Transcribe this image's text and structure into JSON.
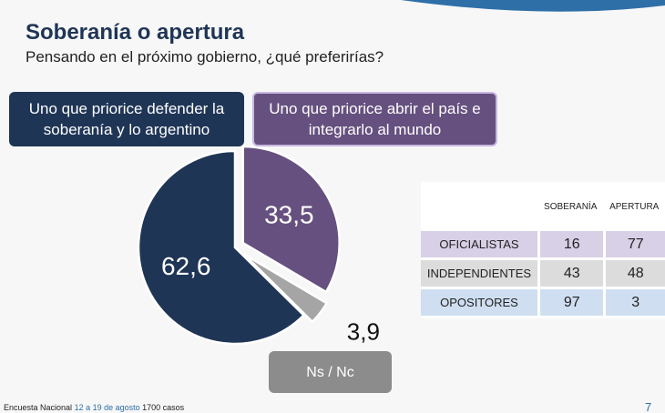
{
  "title": "Soberanía o apertura",
  "subtitle": "Pensando en el próximo gobierno, ¿qué preferirías?",
  "chart_data": {
    "type": "pie",
    "categories": [
      "Uno que priorice defender la soberanía y lo argentino",
      "Uno que priorice abrir el país e integrarlo al mundo",
      "Ns / Nc"
    ],
    "values": [
      62.6,
      33.5,
      3.9
    ],
    "value_labels": [
      "62,6",
      "33,5",
      "3,9"
    ],
    "colors": [
      "#1f3556",
      "#66507f",
      "#a5a5a5"
    ]
  },
  "table": {
    "columns": [
      "SOBERANÍA",
      "APERTURA"
    ],
    "rows": [
      [
        "OFICIALISTAS",
        16,
        77
      ],
      [
        "INDEPENDIENTES",
        43,
        48
      ],
      [
        "OPOSITORES",
        97,
        3
      ]
    ],
    "row_colors": [
      "#d8d0e6",
      "#dcdcdc",
      "#cfdff1"
    ]
  },
  "footer": {
    "source": "Encuesta Nacional",
    "dates": "12 a 19 de agosto",
    "cases": "1700 casos"
  },
  "page_number": "7"
}
